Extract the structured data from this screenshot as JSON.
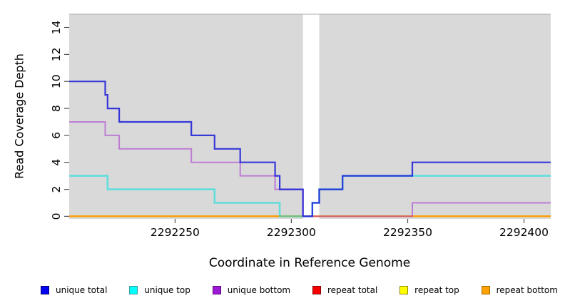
{
  "chart_data": {
    "type": "line",
    "subtype": "step",
    "title": "",
    "xlabel": "Coordinate in Reference Genome",
    "ylabel": "Read Coverage Depth",
    "xlim": [
      2292204.5,
      2292411.5
    ],
    "ylim": [
      -0.19,
      14.98
    ],
    "x_ticks": [
      2292250,
      2292300,
      2292350,
      2292400
    ],
    "y_ticks": [
      0,
      2,
      4,
      6,
      8,
      10,
      12,
      14
    ],
    "grid": false,
    "plot_bg": "#d9d9d9",
    "border_color": "#a8a8a8",
    "tick_color": "#4d4d4d",
    "gap_band": {
      "from": 2292305,
      "to": 2292312,
      "color": "#ffffff"
    },
    "series": [
      {
        "name": "repeat total",
        "color": "#d40000",
        "opacity": 1,
        "width": 2,
        "points": [
          [
            2292204.5,
            0
          ],
          [
            2292411.5,
            0
          ]
        ]
      },
      {
        "name": "repeat top",
        "color": "#ffff00",
        "opacity": 1,
        "width": 2,
        "points": [
          [
            2292204.5,
            0
          ],
          [
            2292411.5,
            0
          ]
        ]
      },
      {
        "name": "repeat bottom",
        "color": "#ff9d00",
        "opacity": 1,
        "width": 2.2,
        "points": [
          [
            2292204.5,
            0
          ],
          [
            2292411.5,
            0
          ]
        ]
      },
      {
        "name": "unique top",
        "color": "#00e0e0",
        "opacity": 0.55,
        "width": 2.6,
        "points": [
          [
            2292204.5,
            3
          ],
          [
            2292221,
            2
          ],
          [
            2292267,
            1
          ],
          [
            2292295,
            0
          ],
          [
            2292309,
            1
          ],
          [
            2292312,
            2
          ],
          [
            2292322,
            3
          ],
          [
            2292411.5,
            3
          ]
        ]
      },
      {
        "name": "unique bottom",
        "color": "#a21fd0",
        "opacity": 0.5,
        "width": 2,
        "points": [
          [
            2292204.5,
            7
          ],
          [
            2292220,
            6
          ],
          [
            2292226,
            5
          ],
          [
            2292257,
            4
          ],
          [
            2292278,
            3
          ],
          [
            2292293,
            2
          ],
          [
            2292305,
            0
          ],
          [
            2292352,
            1
          ],
          [
            2292411.5,
            1
          ]
        ]
      },
      {
        "name": "unique total",
        "color": "#2020d8",
        "opacity": 0.88,
        "width": 2.2,
        "points": [
          [
            2292204.5,
            10
          ],
          [
            2292220,
            9
          ],
          [
            2292221,
            8
          ],
          [
            2292226,
            7
          ],
          [
            2292257,
            6
          ],
          [
            2292267,
            5
          ],
          [
            2292278,
            4
          ],
          [
            2292293,
            3
          ],
          [
            2292295,
            2
          ],
          [
            2292305,
            0
          ],
          [
            2292309,
            1
          ],
          [
            2292312,
            2
          ],
          [
            2292322,
            3
          ],
          [
            2292352,
            4
          ],
          [
            2292411.5,
            4
          ]
        ]
      }
    ],
    "legend_position": "bottom"
  },
  "legend": {
    "items": [
      {
        "label": "unique total",
        "fill": "#0202f2",
        "edge": "#00007a"
      },
      {
        "label": "unique top",
        "fill": "#00ffff",
        "edge": "#3d9e9e"
      },
      {
        "label": "unique bottom",
        "fill": "#9c1ad6",
        "edge": "#5c0a86"
      },
      {
        "label": "repeat total",
        "fill": "#f50000",
        "edge": "#8c0000"
      },
      {
        "label": "repeat top",
        "fill": "#ffff00",
        "edge": "#8c8c00"
      },
      {
        "label": "repeat bottom",
        "fill": "#ffa200",
        "edge": "#a66a00"
      }
    ]
  }
}
